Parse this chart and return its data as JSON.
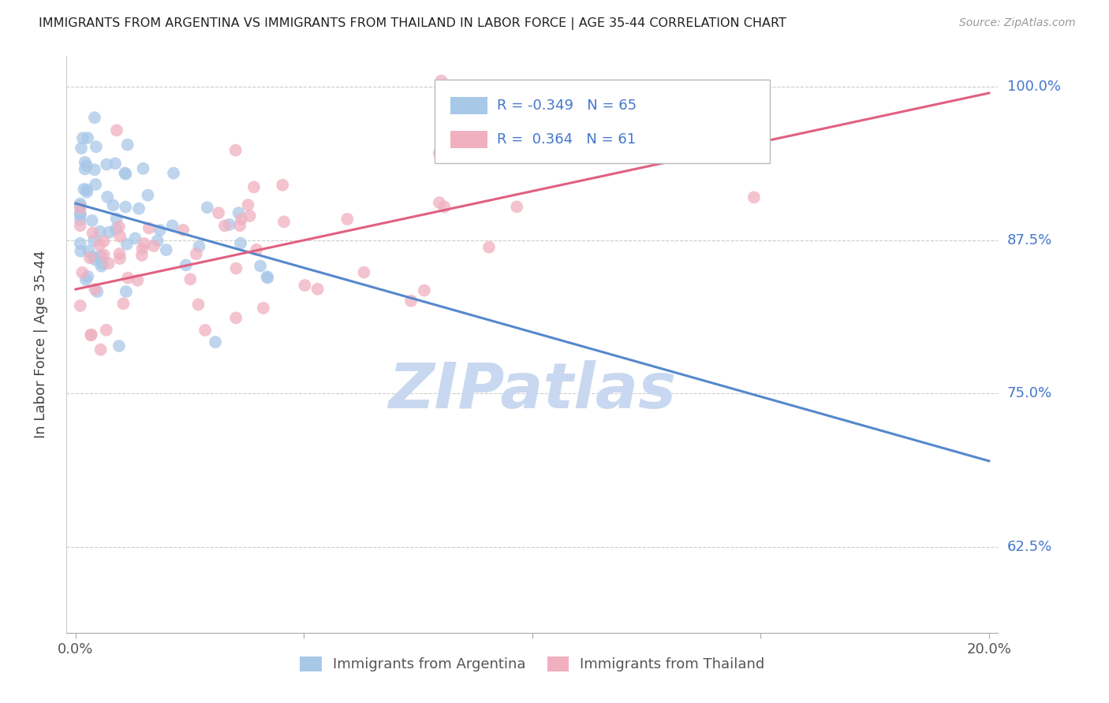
{
  "title": "IMMIGRANTS FROM ARGENTINA VS IMMIGRANTS FROM THAILAND IN LABOR FORCE | AGE 35-44 CORRELATION CHART",
  "source": "Source: ZipAtlas.com",
  "ylabel": "In Labor Force | Age 35-44",
  "argentina_color": "#a8c8e8",
  "thailand_color": "#f0b0c0",
  "argentina_line_color": "#5588cc",
  "thailand_line_color": "#e06080",
  "legend_text_color": "#4477cc",
  "argentina_R": -0.349,
  "argentina_N": 65,
  "thailand_R": 0.364,
  "thailand_N": 61,
  "xlim": [
    -0.002,
    0.202
  ],
  "ylim": [
    0.555,
    1.025
  ],
  "ytick_positions": [
    0.625,
    0.75,
    0.875,
    1.0
  ],
  "ytick_labels": [
    "62.5%",
    "75.0%",
    "87.5%",
    "100.0%"
  ],
  "watermark": "ZIPatlas",
  "watermark_color": "#c8d8f0",
  "background_color": "#ffffff",
  "grid_color": "#cccccc",
  "arg_line_x0": 0.0,
  "arg_line_y0": 0.905,
  "arg_line_x1": 0.2,
  "arg_line_y1": 0.695,
  "thai_line_x0": 0.0,
  "thai_line_y0": 0.835,
  "thai_line_x1": 0.2,
  "thai_line_y1": 0.995
}
